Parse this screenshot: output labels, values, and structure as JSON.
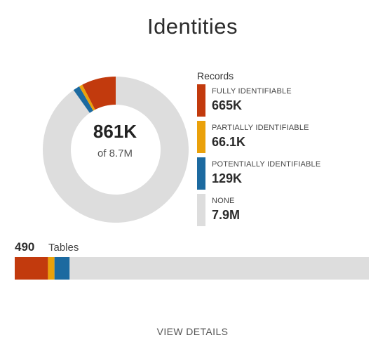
{
  "header": {
    "title": "Identities"
  },
  "chart_data": [
    {
      "type": "pie",
      "variant": "donut",
      "categories": [
        "NONE",
        "POTENTIALLY IDENTIFIABLE",
        "PARTIALLY IDENTIFIABLE",
        "FULLY IDENTIFIABLE"
      ],
      "values": [
        7900000,
        129000,
        66100,
        665000
      ],
      "colors": [
        "#dddddd",
        "#1c6aa0",
        "#eaa10a",
        "#c23a0d"
      ],
      "center_value": "861K",
      "center_label": "of 8.7M",
      "legend_title": "Records",
      "legend_placement": "right",
      "legend": [
        {
          "label": "FULLY IDENTIFIABLE",
          "value": "665K",
          "color": "#c23a0d"
        },
        {
          "label": "PARTIALLY IDENTIFIABLE",
          "value": "66.1K",
          "color": "#eaa10a"
        },
        {
          "label": "POTENTIALLY IDENTIFIABLE",
          "value": "129K",
          "color": "#1c6aa0"
        },
        {
          "label": "NONE",
          "value": "7.9M",
          "color": "#dddddd"
        }
      ]
    },
    {
      "type": "bar",
      "variant": "stacked-horizontal",
      "count": "490",
      "label": "Tables",
      "categories": [
        "FULLY IDENTIFIABLE",
        "PARTIALLY IDENTIFIABLE",
        "POTENTIALLY IDENTIFIABLE",
        "NONE"
      ],
      "values": [
        46,
        9,
        21,
        414
      ],
      "colors": [
        "#c23a0d",
        "#eaa10a",
        "#1c6aa0",
        "#dddddd"
      ]
    }
  ],
  "footer": {
    "view_details": "VIEW DETAILS"
  }
}
